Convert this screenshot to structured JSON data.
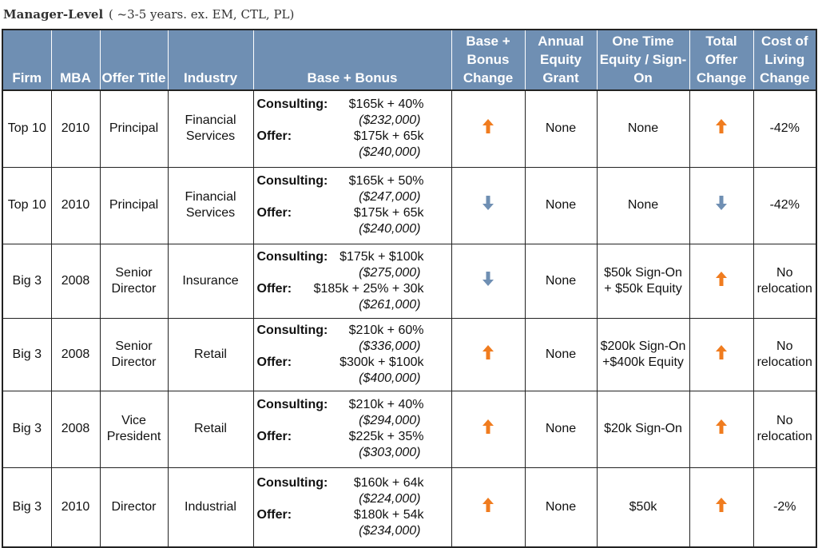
{
  "heading": {
    "title": "Manager-Level",
    "subtitle": "( ~3-5 years. ex. EM, CTL, PL)"
  },
  "columns": {
    "firm": "Firm",
    "mba": "MBA",
    "offer_title": "Offer Title",
    "industry": "Industry",
    "base_bonus": "Base + Bonus",
    "base_bonus_change": "Base + Bonus Change",
    "annual_equity": "Annual Equity Grant",
    "one_time_equity": "One Time Equity / Sign-On",
    "total_offer_change": "Total Offer Change",
    "col_change": "Cost of Living Change"
  },
  "labels": {
    "consulting": "Consulting:",
    "offer": "Offer:"
  },
  "colors": {
    "header_bg": "#6f8fb3",
    "arrow_up": "#f07c1f",
    "arrow_down": "#6f8fb3"
  },
  "rows": [
    {
      "firm": "Top 10",
      "mba": "2010",
      "title": "Principal",
      "industry": "Financial Services",
      "consulting": "$165k + 40%",
      "consulting_total": "($232,000)",
      "offer": "$175k + 65k",
      "offer_total": "($240,000)",
      "bb_change": "up",
      "annual_equity": "None",
      "one_time": "None",
      "total_change": "up",
      "col_change": "-42%"
    },
    {
      "firm": "Top 10",
      "mba": "2010",
      "title": "Principal",
      "industry": "Financial Services",
      "consulting": "$165k + 50%",
      "consulting_total": "($247,000)",
      "offer": "$175k + 65k",
      "offer_total": "($240,000)",
      "bb_change": "down",
      "annual_equity": "None",
      "one_time": "None",
      "total_change": "down",
      "col_change": "-42%"
    },
    {
      "firm": "Big 3",
      "mba": "2008",
      "title": "Senior Director",
      "industry": "Insurance",
      "consulting": "$175k + $100k",
      "consulting_total": "($275,000)",
      "offer": "$185k + 25% + 30k",
      "offer_total": "($261,000)",
      "bb_change": "down",
      "annual_equity": "None",
      "one_time": "$50k Sign-On + $50k Equity",
      "total_change": "up",
      "col_change": "No relocation"
    },
    {
      "firm": "Big 3",
      "mba": "2008",
      "title": "Senior Director",
      "industry": "Retail",
      "consulting": "$210k + 60%",
      "consulting_total": "($336,000)",
      "offer": "$300k + $100k",
      "offer_total": "($400,000)",
      "bb_change": "up",
      "annual_equity": "None",
      "one_time": "$200k Sign-On +$400k Equity",
      "total_change": "up",
      "col_change": "No relocation"
    },
    {
      "firm": "Big 3",
      "mba": "2008",
      "title": "Vice President",
      "industry": "Retail",
      "consulting": "$210k + 40%",
      "consulting_total": "($294,000)",
      "offer": "$225k + 35%",
      "offer_total": "($303,000)",
      "bb_change": "up",
      "annual_equity": "None",
      "one_time": "$20k Sign-On",
      "total_change": "up",
      "col_change": "No relocation"
    },
    {
      "firm": "Big 3",
      "mba": "2010",
      "title": "Director",
      "industry": "Industrial",
      "consulting": "$160k + 64k",
      "consulting_total": "($224,000)",
      "offer": "$180k + 54k",
      "offer_total": "($234,000)",
      "bb_change": "up",
      "annual_equity": "None",
      "one_time": "$50k",
      "total_change": "up",
      "col_change": "-2%"
    }
  ]
}
